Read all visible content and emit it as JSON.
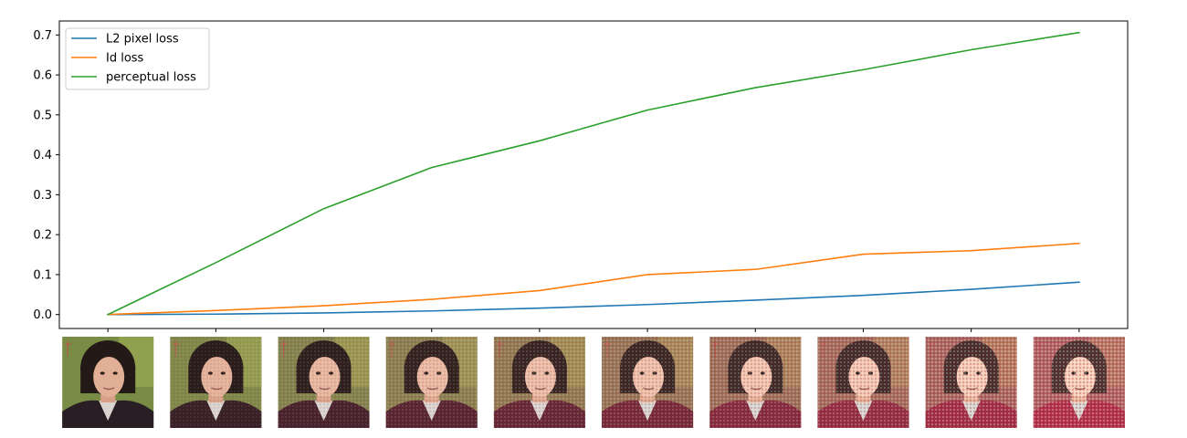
{
  "chart_data": {
    "type": "line",
    "x": [
      0,
      1,
      2,
      3,
      4,
      5,
      6,
      7,
      8,
      9
    ],
    "xticks_labeled": false,
    "ylim": [
      -0.035,
      0.735
    ],
    "yticks": [
      0.0,
      0.1,
      0.2,
      0.3,
      0.4,
      0.5,
      0.6,
      0.7
    ],
    "ytick_labels": [
      "0.0",
      "0.1",
      "0.2",
      "0.3",
      "0.4",
      "0.5",
      "0.6",
      "0.7"
    ],
    "grid": false,
    "legend_position": "top-left",
    "series": [
      {
        "name": "L2 pixel loss",
        "color": "#1f77b4",
        "values": [
          0.0,
          0.001,
          0.004,
          0.009,
          0.016,
          0.025,
          0.036,
          0.048,
          0.063,
          0.081
        ]
      },
      {
        "name": "Id loss",
        "color": "#ff7f0e",
        "values": [
          0.0,
          0.01,
          0.022,
          0.038,
          0.06,
          0.1,
          0.113,
          0.151,
          0.16,
          0.178
        ]
      },
      {
        "name": "perceptual loss",
        "color": "#2ca02c",
        "values": [
          0.0,
          0.13,
          0.265,
          0.368,
          0.435,
          0.512,
          0.568,
          0.613,
          0.663,
          0.706
        ]
      }
    ],
    "thumbnails": {
      "count": 10,
      "description_icon": "face-portrait-thumbnail"
    }
  }
}
